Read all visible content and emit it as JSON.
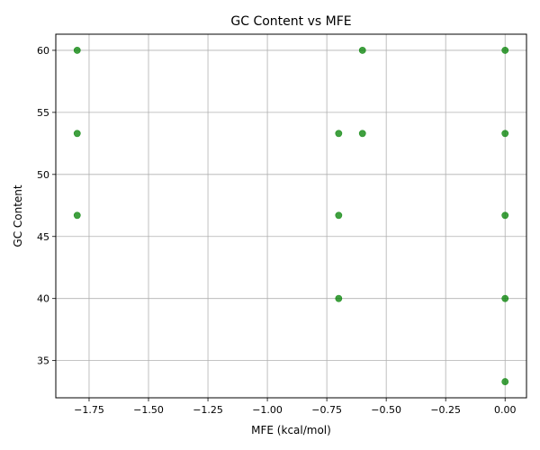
{
  "chart_data": {
    "type": "scatter",
    "title": "GC Content vs MFE",
    "xlabel": "MFE (kcal/mol)",
    "ylabel": "GC Content",
    "xlim": [
      -1.89,
      0.09
    ],
    "ylim": [
      32.0,
      61.3
    ],
    "xticks": [
      -1.75,
      -1.5,
      -1.25,
      -1.0,
      -0.75,
      -0.5,
      -0.25,
      0.0
    ],
    "xtick_labels": [
      "−1.75",
      "−1.50",
      "−1.25",
      "−1.00",
      "−0.75",
      "−0.50",
      "−0.25",
      "0.00"
    ],
    "yticks": [
      35,
      40,
      45,
      50,
      55,
      60
    ],
    "ytick_labels": [
      "35",
      "40",
      "45",
      "50",
      "55",
      "60"
    ],
    "grid": true,
    "marker_color": "#008000",
    "points": [
      {
        "x": -1.8,
        "y": 60.0
      },
      {
        "x": -1.8,
        "y": 53.3
      },
      {
        "x": -1.8,
        "y": 46.7
      },
      {
        "x": -0.7,
        "y": 53.3
      },
      {
        "x": -0.7,
        "y": 46.7
      },
      {
        "x": -0.7,
        "y": 40.0
      },
      {
        "x": -0.6,
        "y": 60.0
      },
      {
        "x": -0.6,
        "y": 53.3
      },
      {
        "x": 0.0,
        "y": 60.0
      },
      {
        "x": 0.0,
        "y": 53.3
      },
      {
        "x": 0.0,
        "y": 46.7
      },
      {
        "x": 0.0,
        "y": 40.0
      },
      {
        "x": 0.0,
        "y": 33.3
      }
    ]
  }
}
